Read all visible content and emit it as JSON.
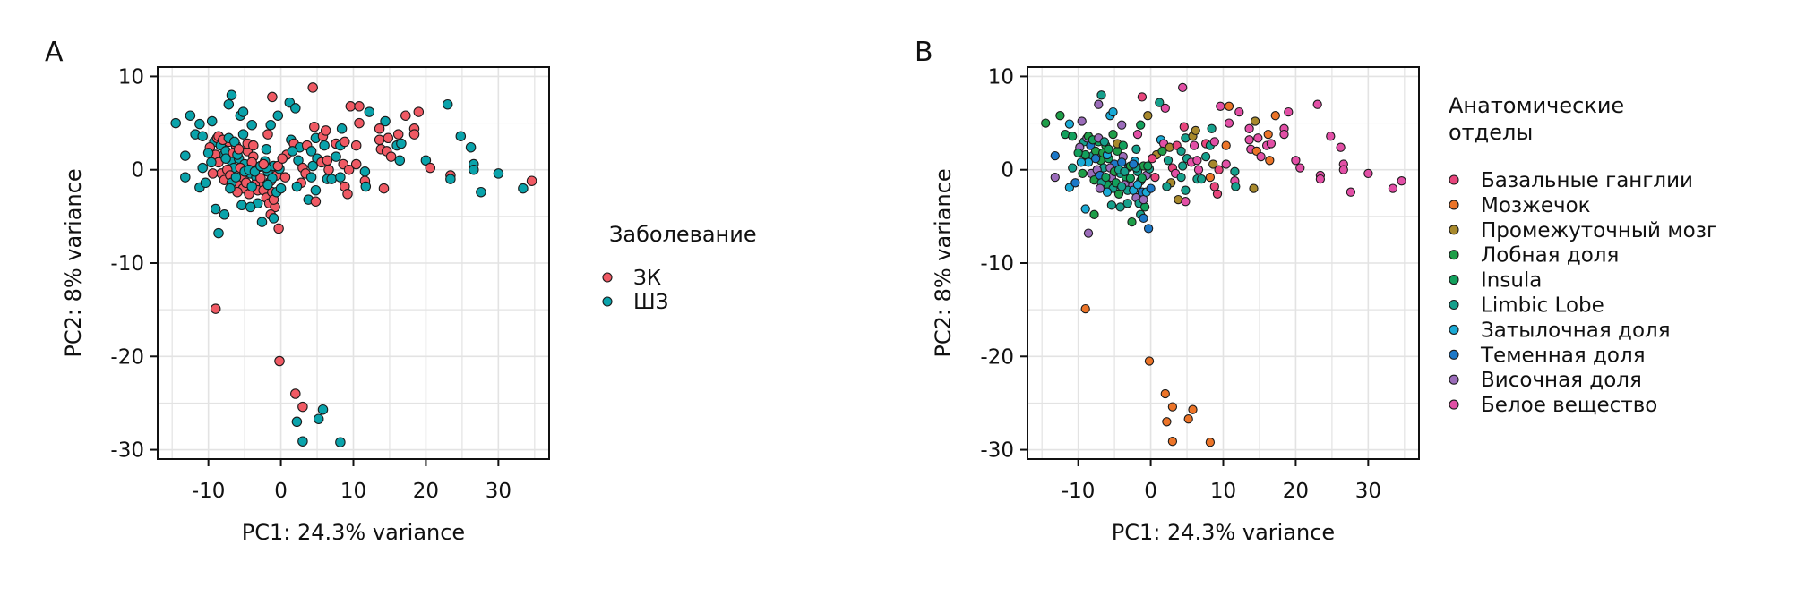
{
  "chart_data": [
    {
      "type": "scatter",
      "panel_label": "A",
      "title": "",
      "xlabel": "PC1: 24.3% variance",
      "ylabel": "PC2: 8% variance",
      "xlim": [
        -17,
        37
      ],
      "ylim": [
        -31,
        11
      ],
      "xticks": [
        -10,
        0,
        10,
        20,
        30
      ],
      "yticks": [
        10,
        0,
        -10,
        -20,
        -30
      ],
      "xtick_labels": [
        "-10",
        "0",
        "10",
        "20",
        "30"
      ],
      "ytick_labels": [
        "10",
        "0",
        "-10",
        "-20",
        "-30"
      ],
      "grid": true,
      "legend_position": "right",
      "legend": {
        "title": "Заболевание",
        "entries": [
          {
            "label": "ЗК",
            "color": "#F05A64"
          },
          {
            "label": "ШЗ",
            "color": "#0AA3AB"
          }
        ]
      },
      "color_by": "disease"
    },
    {
      "type": "scatter",
      "panel_label": "B",
      "title": "",
      "xlabel": "PC1: 24.3% variance",
      "ylabel": "PC2: 8% variance",
      "xlim": [
        -17,
        37
      ],
      "ylim": [
        -31,
        11
      ],
      "xticks": [
        -10,
        0,
        10,
        20,
        30
      ],
      "yticks": [
        10,
        0,
        -10,
        -20,
        -30
      ],
      "xtick_labels": [
        "-10",
        "0",
        "10",
        "20",
        "30"
      ],
      "ytick_labels": [
        "10",
        "0",
        "-10",
        "-20",
        "-30"
      ],
      "grid": true,
      "legend_position": "right",
      "legend": {
        "title_lines": [
          "Анатомические",
          "отделы"
        ],
        "entries": [
          {
            "label": "Базальные ганглии",
            "color": "#E8457C"
          },
          {
            "label": "Мозжечок",
            "color": "#EC7428"
          },
          {
            "label": "Промежуточный мозг",
            "color": "#A8892C"
          },
          {
            "label": "Лобная доля",
            "color": "#1E9E48"
          },
          {
            "label": "Insula",
            "color": "#12A05C"
          },
          {
            "label": "Limbic Lobe",
            "color": "#15A08C"
          },
          {
            "label": "Затылочная доля",
            "color": "#1AAAD6"
          },
          {
            "label": "Теменная доля",
            "color": "#1C78C8"
          },
          {
            "label": "Височная доля",
            "color": "#9B6CBA"
          },
          {
            "label": "Белое вещество",
            "color": "#E24FA6"
          }
        ]
      },
      "color_by": "region"
    }
  ],
  "points": [
    [
      -14.5,
      5.0,
      1,
      3
    ],
    [
      -12.5,
      5.8,
      1,
      3
    ],
    [
      -11.2,
      4.9,
      1,
      6
    ],
    [
      -11.8,
      3.8,
      1,
      4
    ],
    [
      -10.8,
      3.6,
      1,
      4
    ],
    [
      -13.2,
      1.5,
      1,
      7
    ],
    [
      -13.2,
      -0.8,
      1,
      8
    ],
    [
      -10.8,
      0.2,
      1,
      5
    ],
    [
      -11.2,
      -1.9,
      1,
      6
    ],
    [
      -10.4,
      -1.4,
      1,
      7
    ],
    [
      -9.5,
      5.2,
      1,
      8
    ],
    [
      -9.2,
      3.0,
      1,
      5
    ],
    [
      -8.8,
      3.4,
      0,
      8
    ],
    [
      -8.3,
      2.6,
      1,
      7
    ],
    [
      -8.0,
      1.5,
      1,
      5
    ],
    [
      -7.6,
      2.0,
      1,
      3
    ],
    [
      -7.2,
      3.0,
      0,
      4
    ],
    [
      -6.9,
      1.0,
      1,
      3
    ],
    [
      -6.5,
      0.2,
      1,
      5
    ],
    [
      -6.2,
      2.6,
      0,
      3
    ],
    [
      -5.8,
      1.2,
      1,
      4
    ],
    [
      -5.4,
      -0.8,
      0,
      8
    ],
    [
      -5.0,
      0.6,
      1,
      7
    ],
    [
      -4.6,
      2.0,
      0,
      3
    ],
    [
      -4.2,
      -0.4,
      1,
      5
    ],
    [
      -3.8,
      1.4,
      0,
      8
    ],
    [
      -3.4,
      -0.8,
      1,
      4
    ],
    [
      -3.0,
      0.3,
      0,
      7
    ],
    [
      -2.6,
      -1.8,
      0,
      8
    ],
    [
      -2.2,
      0.9,
      1,
      6
    ],
    [
      -1.8,
      -0.2,
      1,
      5
    ],
    [
      -1.4,
      -1.2,
      0,
      4
    ],
    [
      -1.0,
      0.4,
      1,
      3
    ],
    [
      -0.6,
      -0.6,
      0,
      8
    ],
    [
      -0.2,
      0.1,
      1,
      5
    ],
    [
      -9.8,
      2.4,
      0,
      8
    ],
    [
      -9.0,
      1.6,
      0,
      4
    ],
    [
      -8.6,
      0.8,
      0,
      6
    ],
    [
      -8.2,
      -0.4,
      0,
      8
    ],
    [
      -7.8,
      -1.1,
      0,
      3
    ],
    [
      -7.4,
      0.0,
      0,
      8
    ],
    [
      -7.0,
      -0.6,
      0,
      7
    ],
    [
      -6.6,
      1.8,
      0,
      3
    ],
    [
      -6.0,
      -1.6,
      0,
      4
    ],
    [
      -5.6,
      0.2,
      0,
      8
    ],
    [
      -5.2,
      -2.0,
      0,
      5
    ],
    [
      -4.8,
      -1.4,
      0,
      4
    ],
    [
      -4.4,
      -2.6,
      0,
      3
    ],
    [
      -4.0,
      0.8,
      0,
      7
    ],
    [
      -3.6,
      -1.6,
      0,
      8
    ],
    [
      -3.2,
      -2.2,
      0,
      5
    ],
    [
      -2.8,
      -0.9,
      0,
      4
    ],
    [
      -2.4,
      -2.2,
      0,
      6
    ],
    [
      -2.0,
      -3.0,
      0,
      8
    ],
    [
      -1.6,
      -3.6,
      0,
      5
    ],
    [
      -1.2,
      -2.4,
      0,
      7
    ],
    [
      -0.8,
      -4.0,
      0,
      4
    ],
    [
      -1.4,
      -4.8,
      0,
      5
    ],
    [
      -0.3,
      -6.3,
      0,
      7
    ],
    [
      -1.0,
      -3.2,
      0,
      8
    ],
    [
      -8.6,
      3.6,
      0,
      3
    ],
    [
      -8.0,
      3.2,
      0,
      4
    ],
    [
      -7.2,
      3.4,
      1,
      8
    ],
    [
      -6.4,
      3.0,
      1,
      5
    ],
    [
      -6.0,
      1.6,
      1,
      6
    ],
    [
      -5.8,
      2.2,
      0,
      4
    ],
    [
      -9.4,
      -0.4,
      0,
      3
    ],
    [
      -10.0,
      1.8,
      1,
      4
    ],
    [
      -9.6,
      0.8,
      1,
      6
    ],
    [
      -7.6,
      1.2,
      1,
      7
    ],
    [
      -6.8,
      -1.4,
      1,
      5
    ],
    [
      -6.2,
      -0.8,
      1,
      4
    ],
    [
      -5.0,
      -0.2,
      1,
      3
    ],
    [
      -4.4,
      0.0,
      1,
      5
    ],
    [
      -3.6,
      -0.2,
      1,
      5
    ],
    [
      -2.8,
      0.4,
      1,
      3
    ],
    [
      -2.0,
      0.2,
      1,
      5
    ],
    [
      -1.2,
      -0.9,
      1,
      4
    ],
    [
      -4.0,
      -1.8,
      1,
      5
    ],
    [
      -3.2,
      -3.6,
      1,
      5
    ],
    [
      -5.4,
      -3.8,
      1,
      5
    ],
    [
      -4.2,
      -4.0,
      1,
      5
    ],
    [
      -2.6,
      -5.6,
      1,
      3
    ],
    [
      -1.8,
      -1.6,
      1,
      6
    ],
    [
      -1.0,
      -5.2,
      1,
      7
    ],
    [
      -0.6,
      -2.4,
      1,
      6
    ],
    [
      0.0,
      -2.0,
      1,
      7
    ],
    [
      -9.0,
      -4.2,
      1,
      6
    ],
    [
      -7.8,
      -4.8,
      1,
      3
    ],
    [
      -8.6,
      -6.8,
      1,
      8
    ],
    [
      -6.8,
      8.0,
      1,
      5
    ],
    [
      -7.2,
      7.0,
      1,
      8
    ],
    [
      -5.6,
      5.8,
      1,
      6
    ],
    [
      -5.2,
      6.2,
      1,
      6
    ],
    [
      -4.0,
      4.8,
      1,
      8
    ],
    [
      -1.4,
      4.8,
      1,
      4
    ],
    [
      -0.4,
      5.8,
      1,
      2
    ],
    [
      -1.8,
      3.8,
      0,
      9
    ],
    [
      -1.2,
      7.8,
      0,
      0
    ],
    [
      -2.0,
      2.2,
      1,
      5
    ],
    [
      -5.2,
      3.8,
      1,
      3
    ],
    [
      -4.6,
      2.8,
      0,
      2
    ],
    [
      -3.8,
      2.6,
      0,
      4
    ],
    [
      -2.4,
      0.6,
      0,
      7
    ],
    [
      -0.4,
      0.4,
      0,
      4
    ],
    [
      1.2,
      7.2,
      1,
      5
    ],
    [
      2.0,
      6.6,
      1,
      9
    ],
    [
      1.4,
      3.2,
      1,
      6
    ],
    [
      0.8,
      1.6,
      0,
      2
    ],
    [
      1.8,
      2.8,
      0,
      9
    ],
    [
      0.6,
      -0.8,
      0,
      0
    ],
    [
      2.4,
      1.0,
      1,
      5
    ],
    [
      2.6,
      2.4,
      1,
      2
    ],
    [
      3.0,
      0.2,
      0,
      0
    ],
    [
      3.4,
      -0.4,
      0,
      9
    ],
    [
      2.8,
      -1.4,
      0,
      2
    ],
    [
      2.2,
      -1.8,
      1,
      5
    ],
    [
      3.6,
      2.6,
      0,
      0
    ],
    [
      4.2,
      2.0,
      1,
      5
    ],
    [
      4.6,
      4.6,
      0,
      0
    ],
    [
      4.8,
      3.4,
      1,
      5
    ],
    [
      5.0,
      1.2,
      1,
      5
    ],
    [
      4.4,
      0.4,
      1,
      5
    ],
    [
      4.2,
      -0.8,
      1,
      5
    ],
    [
      4.8,
      -2.2,
      1,
      5
    ],
    [
      3.8,
      -3.2,
      1,
      2
    ],
    [
      4.8,
      -3.4,
      0,
      9
    ],
    [
      5.6,
      0.8,
      0,
      9
    ],
    [
      5.8,
      3.6,
      0,
      2
    ],
    [
      6.2,
      4.2,
      0,
      2
    ],
    [
      6.0,
      2.6,
      1,
      9
    ],
    [
      6.4,
      -1.0,
      1,
      5
    ],
    [
      6.4,
      1.0,
      0,
      9
    ],
    [
      7.0,
      -1.0,
      1,
      5
    ],
    [
      6.6,
      0.0,
      0,
      9
    ],
    [
      7.6,
      2.8,
      0,
      0
    ],
    [
      7.6,
      1.4,
      1,
      5
    ],
    [
      8.2,
      -0.8,
      1,
      1
    ],
    [
      8.2,
      2.6,
      1,
      5
    ],
    [
      8.4,
      4.4,
      1,
      5
    ],
    [
      8.8,
      3.0,
      0,
      9
    ],
    [
      8.8,
      -1.8,
      0,
      0
    ],
    [
      9.2,
      -2.6,
      0,
      0
    ],
    [
      8.6,
      0.6,
      0,
      2
    ],
    [
      9.4,
      0.0,
      0,
      0
    ],
    [
      9.6,
      6.8,
      0,
      9
    ],
    [
      10.8,
      6.8,
      0,
      1
    ],
    [
      10.8,
      5.0,
      0,
      9
    ],
    [
      12.2,
      6.2,
      1,
      9
    ],
    [
      10.4,
      2.6,
      0,
      1
    ],
    [
      10.4,
      0.6,
      0,
      9
    ],
    [
      11.6,
      -0.2,
      1,
      5
    ],
    [
      11.6,
      -1.2,
      0,
      9
    ],
    [
      11.7,
      -1.8,
      1,
      5
    ],
    [
      14.2,
      -2.0,
      0,
      2
    ],
    [
      13.6,
      4.4,
      0,
      9
    ],
    [
      14.4,
      5.2,
      1,
      2
    ],
    [
      13.6,
      3.2,
      0,
      9
    ],
    [
      13.8,
      2.2,
      0,
      9
    ],
    [
      14.8,
      3.4,
      0,
      9
    ],
    [
      14.6,
      2.0,
      0,
      1
    ],
    [
      15.2,
      1.4,
      0,
      9
    ],
    [
      16.2,
      3.8,
      0,
      1
    ],
    [
      16.0,
      2.6,
      1,
      9
    ],
    [
      16.4,
      1.0,
      1,
      1
    ],
    [
      16.6,
      2.8,
      1,
      9
    ],
    [
      17.2,
      5.8,
      0,
      1
    ],
    [
      18.4,
      4.4,
      0,
      9
    ],
    [
      18.4,
      3.8,
      0,
      9
    ],
    [
      19.0,
      6.2,
      0,
      9
    ],
    [
      20.0,
      1.0,
      1,
      9
    ],
    [
      20.6,
      0.2,
      0,
      9
    ],
    [
      23.0,
      7.0,
      1,
      9
    ],
    [
      23.4,
      -0.6,
      0,
      9
    ],
    [
      23.4,
      -1.0,
      1,
      9
    ],
    [
      24.8,
      3.6,
      1,
      9
    ],
    [
      26.2,
      2.4,
      1,
      9
    ],
    [
      26.6,
      0.6,
      1,
      9
    ],
    [
      26.6,
      0.0,
      1,
      9
    ],
    [
      27.6,
      -2.4,
      1,
      9
    ],
    [
      30.0,
      -0.4,
      1,
      9
    ],
    [
      33.4,
      -2.0,
      1,
      9
    ],
    [
      34.6,
      -1.2,
      0,
      9
    ],
    [
      -9.0,
      -14.9,
      0,
      1
    ],
    [
      -0.2,
      -20.5,
      0,
      1
    ],
    [
      2.0,
      -24.0,
      0,
      1
    ],
    [
      3.0,
      -25.4,
      0,
      1
    ],
    [
      5.8,
      -25.7,
      1,
      1
    ],
    [
      2.2,
      -27.0,
      1,
      1
    ],
    [
      5.2,
      -26.7,
      1,
      1
    ],
    [
      3.0,
      -29.1,
      1,
      1
    ],
    [
      8.2,
      -29.2,
      1,
      1
    ],
    [
      4.4,
      8.8,
      0,
      9
    ],
    [
      1.6,
      2.0,
      1,
      3
    ],
    [
      0.2,
      1.2,
      0,
      0
    ],
    [
      -6.0,
      -2.4,
      0,
      6
    ],
    [
      -7.0,
      -2.0,
      1,
      8
    ]
  ]
}
